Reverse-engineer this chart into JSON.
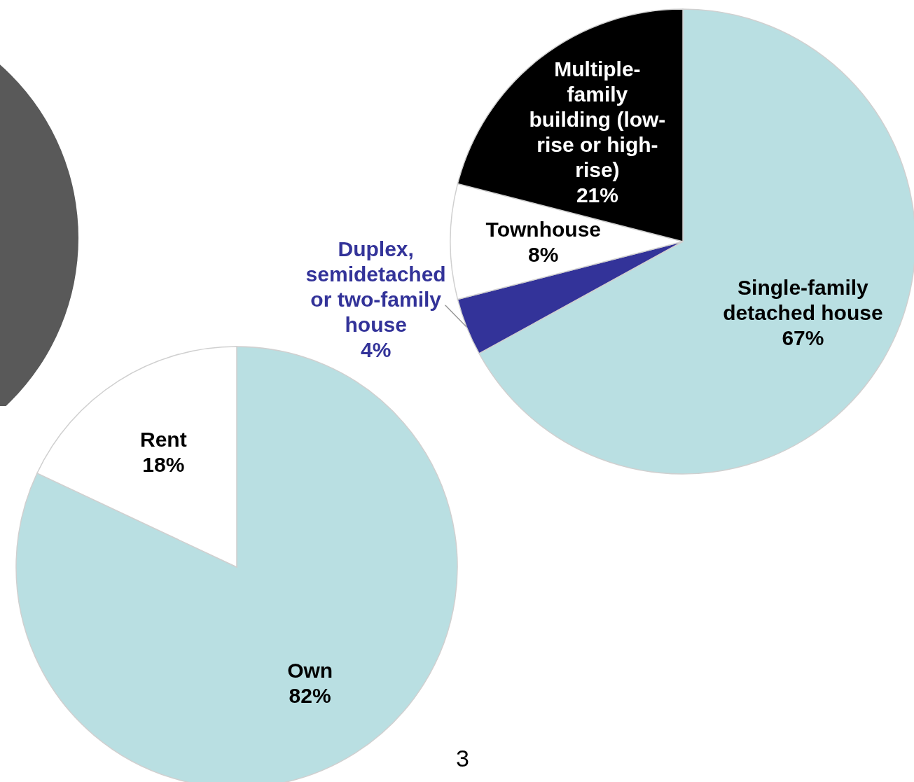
{
  "chart_data": [
    {
      "type": "pie",
      "categories": [
        "Single-family detached house",
        "Duplex, semidetached or two-family house",
        "Townhouse",
        "Multiple-family building (low-rise or high-rise)"
      ],
      "values": [
        67,
        4,
        8,
        21
      ],
      "value_labels": [
        "67%",
        "4%",
        "8%",
        "21%"
      ],
      "colors": [
        "#b9dfe2",
        "#333399",
        "#ffffff",
        "#000000"
      ]
    },
    {
      "type": "pie",
      "categories": [
        "Own",
        "Rent"
      ],
      "values": [
        82,
        18
      ],
      "value_labels": [
        "82%",
        "18%"
      ],
      "colors": [
        "#b9dfe2",
        "#ffffff"
      ],
      "annotations": [
        "3"
      ]
    }
  ]
}
